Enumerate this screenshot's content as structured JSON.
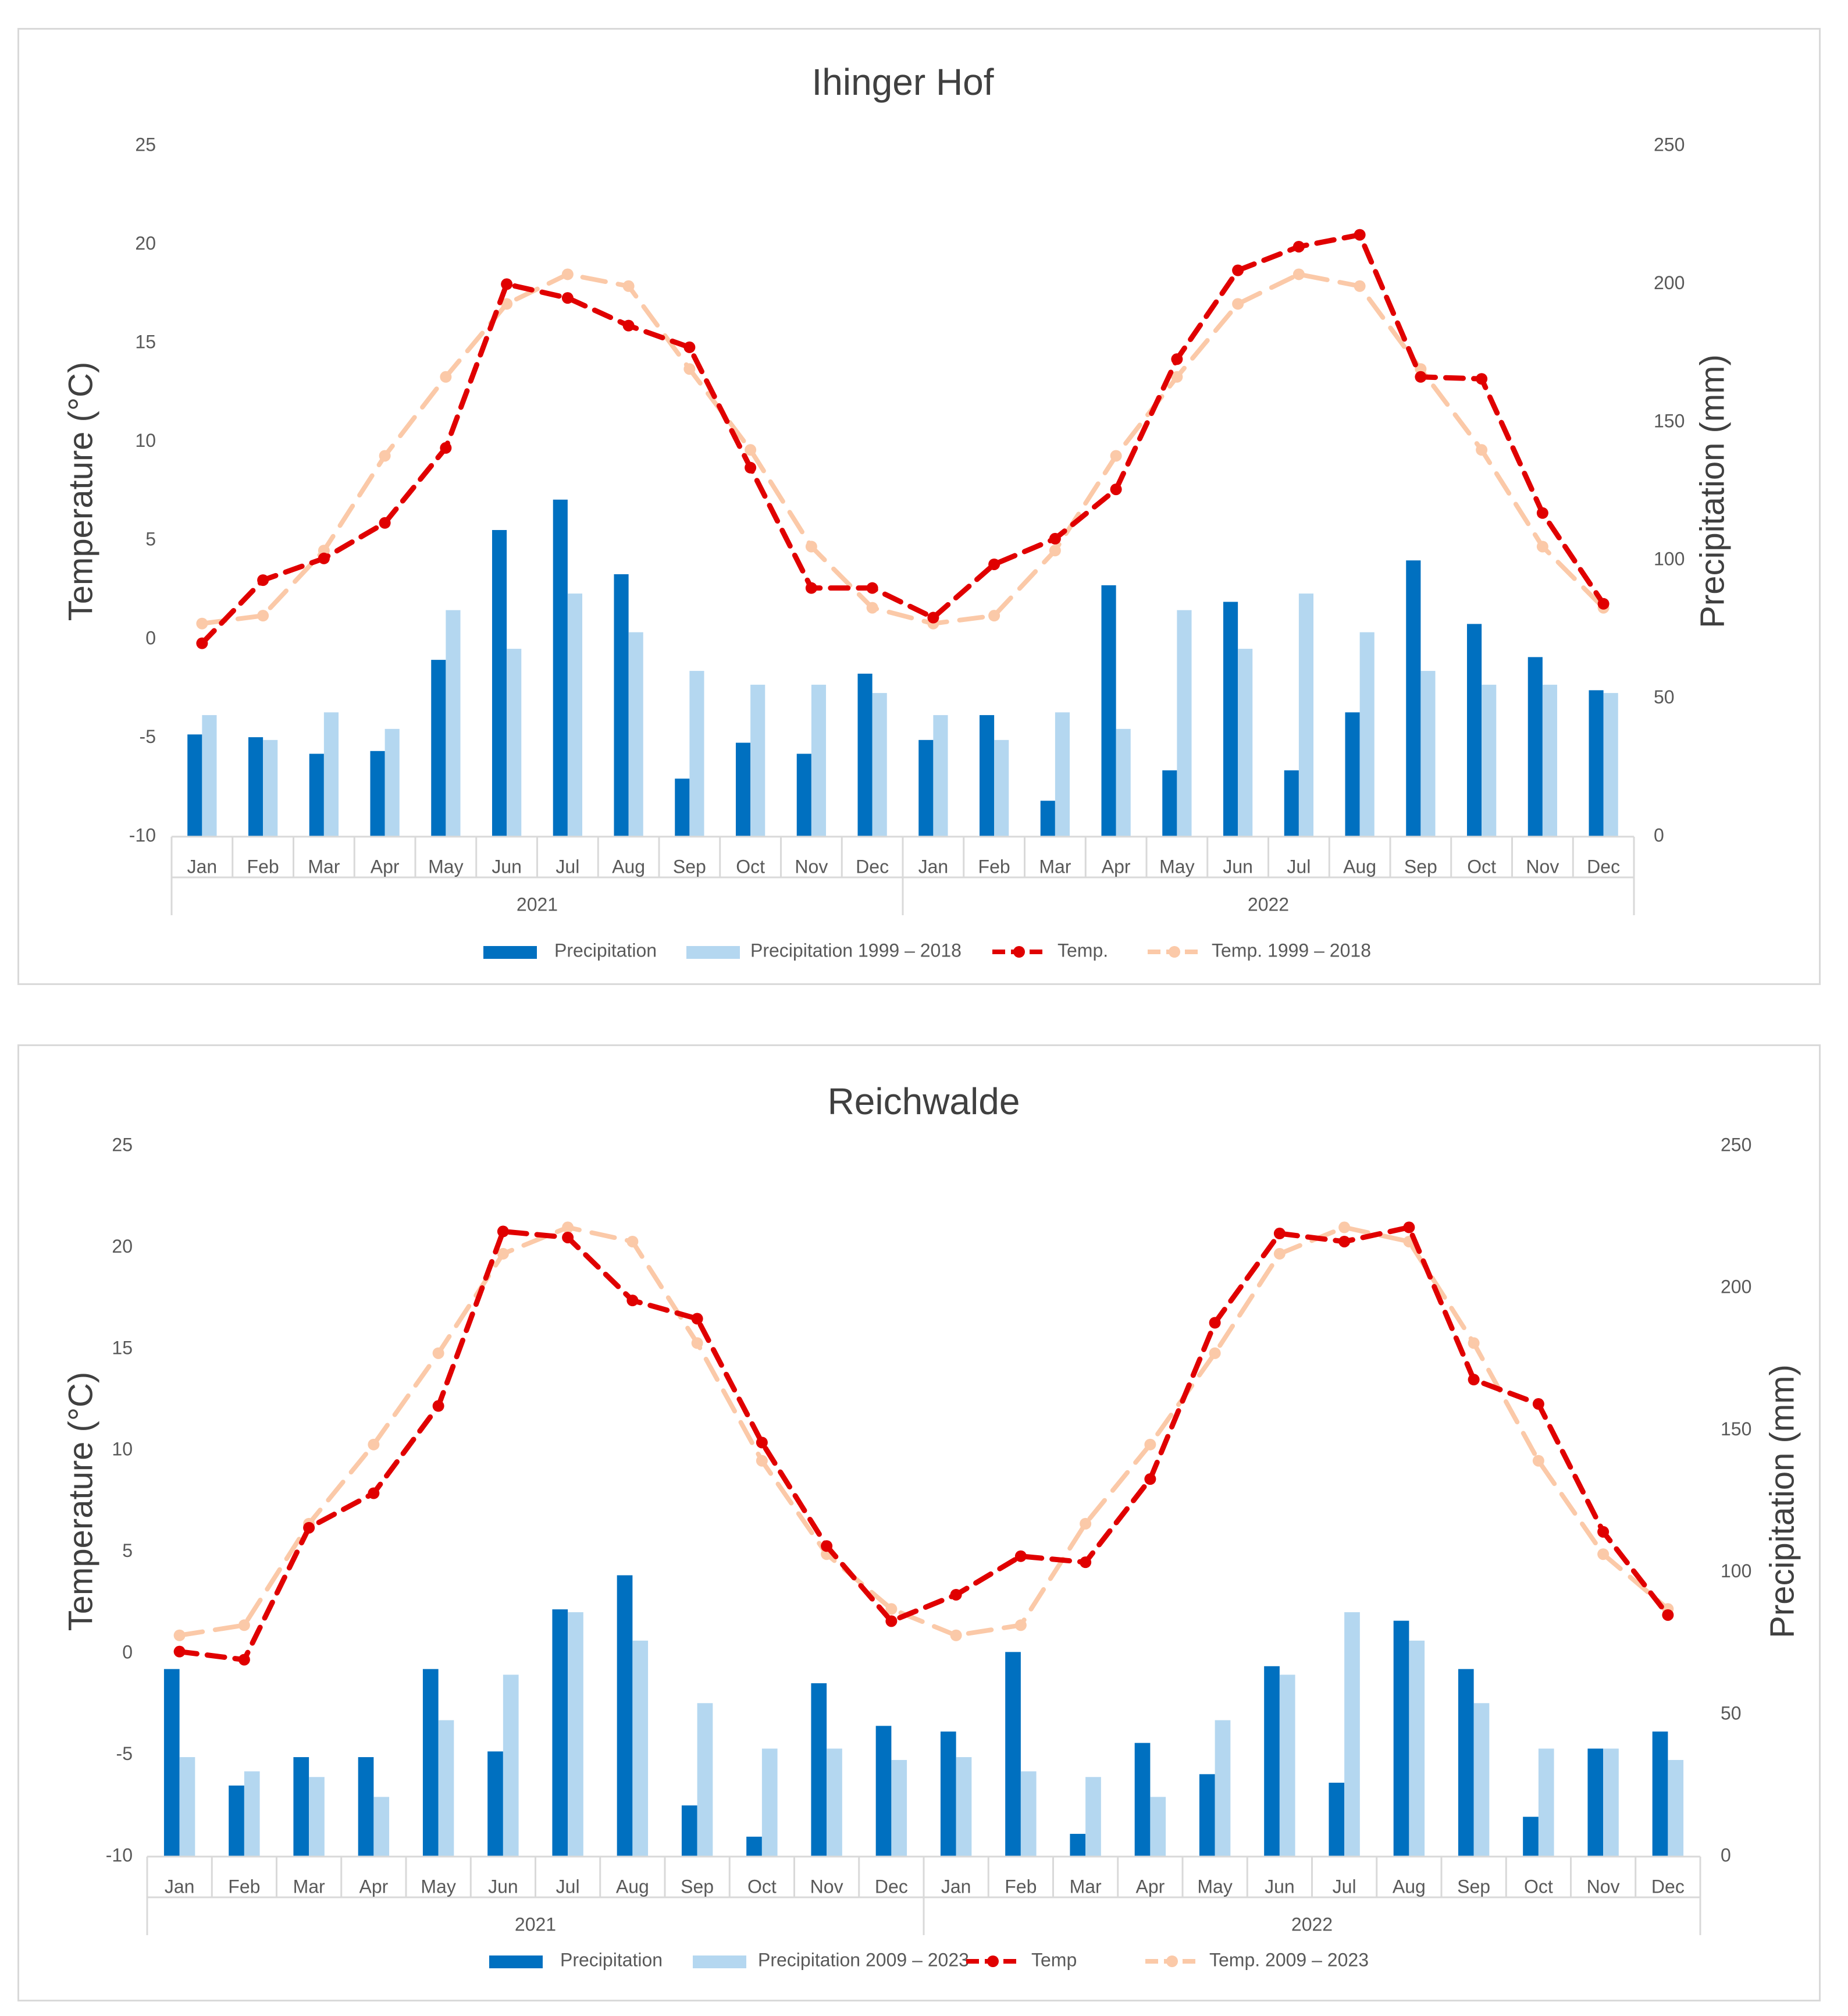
{
  "chart_data": [
    {
      "type": "bar+line",
      "title": "Ihinger Hof",
      "y_left_label": "Temperature (°C)",
      "y_right_label": "Precipitation (mm)",
      "y_left_ticks": [
        "25",
        "20",
        "15",
        "10",
        "5",
        "0",
        "-5",
        "-10"
      ],
      "y_right_ticks": [
        "250",
        "200",
        "150",
        "100",
        "50",
        "0"
      ],
      "ylim_left": [
        -10,
        25
      ],
      "ylim_right": [
        0,
        250
      ],
      "months": [
        "Jan",
        "Feb",
        "Mar",
        "Apr",
        "May",
        "Jun",
        "Jul",
        "Aug",
        "Sep",
        "Oct",
        "Nov",
        "Dec",
        "Jan",
        "Feb",
        "Mar",
        "Apr",
        "May",
        "Jun",
        "Jul",
        "Aug",
        "Sep",
        "Oct",
        "Nov",
        "Dec"
      ],
      "years": [
        "2021",
        "2022"
      ],
      "series": [
        {
          "name": "Precipitation",
          "kind": "bar",
          "axis": "right",
          "color": "#0070c0",
          "values": [
            37,
            36,
            30,
            31,
            64,
            111,
            122,
            95,
            21,
            34,
            30,
            59,
            35,
            44,
            13,
            91,
            24,
            85,
            24,
            45,
            100,
            77,
            65,
            53
          ]
        },
        {
          "name": "Precipitation 1999 – 2018",
          "kind": "bar",
          "axis": "right",
          "color": "#b4d7f0",
          "values": [
            44,
            35,
            45,
            39,
            82,
            68,
            88,
            74,
            60,
            55,
            55,
            52,
            44,
            35,
            45,
            39,
            82,
            68,
            88,
            74,
            60,
            55,
            55,
            52
          ]
        },
        {
          "name": "Temp.",
          "kind": "line",
          "axis": "left",
          "color": "#e00000",
          "values": [
            -0.2,
            3.0,
            4.1,
            5.9,
            9.7,
            18.0,
            17.3,
            15.9,
            14.8,
            8.7,
            2.6,
            2.6,
            1.1,
            3.8,
            5.1,
            7.6,
            14.2,
            18.7,
            19.9,
            20.5,
            13.3,
            13.2,
            6.4,
            1.8
          ]
        },
        {
          "name": "Temp. 1999 – 2018",
          "kind": "line",
          "axis": "left",
          "color": "#fbc9a8",
          "values": [
            0.8,
            1.2,
            4.5,
            9.3,
            13.3,
            17.0,
            18.5,
            17.9,
            13.7,
            9.6,
            4.7,
            1.6,
            0.8,
            1.2,
            4.5,
            9.3,
            13.3,
            17.0,
            18.5,
            17.9,
            13.7,
            9.6,
            4.7,
            1.6
          ]
        }
      ]
    },
    {
      "type": "bar+line",
      "title": "Reichwalde",
      "y_left_label": "Temperature (°C)",
      "y_right_label": "Precipitation (mm)",
      "y_left_ticks": [
        "25",
        "20",
        "15",
        "10",
        "5",
        "0",
        "-5",
        "-10"
      ],
      "y_right_ticks": [
        "250",
        "200",
        "150",
        "100",
        "50",
        "0"
      ],
      "ylim_left": [
        -10,
        25
      ],
      "ylim_right": [
        0,
        250
      ],
      "months": [
        "Jan",
        "Feb",
        "Mar",
        "Apr",
        "May",
        "Jun",
        "Jul",
        "Aug",
        "Sep",
        "Oct",
        "Nov",
        "Dec",
        "Jan",
        "Feb",
        "Mar",
        "Apr",
        "May",
        "Jun",
        "Jul",
        "Aug",
        "Sep",
        "Oct",
        "Nov",
        "Dec"
      ],
      "years": [
        "2021",
        "2022"
      ],
      "series": [
        {
          "name": "Precipitation",
          "kind": "bar",
          "axis": "right",
          "color": "#0070c0",
          "values": [
            66,
            25,
            35,
            35,
            66,
            37,
            87,
            99,
            18,
            7,
            61,
            46,
            44,
            72,
            8,
            40,
            29,
            67,
            26,
            83,
            66,
            14,
            38,
            44
          ]
        },
        {
          "name": "Precipitation 2009 – 2023",
          "kind": "bar",
          "axis": "right",
          "color": "#b4d7f0",
          "values": [
            35,
            30,
            28,
            21,
            48,
            64,
            86,
            76,
            54,
            38,
            38,
            34,
            35,
            30,
            28,
            21,
            48,
            64,
            86,
            76,
            54,
            38,
            38,
            34
          ]
        },
        {
          "name": "Temp",
          "kind": "line",
          "axis": "left",
          "color": "#e00000",
          "values": [
            0.1,
            -0.3,
            6.2,
            7.9,
            12.2,
            20.8,
            20.5,
            17.4,
            16.5,
            10.4,
            5.3,
            1.6,
            2.9,
            4.8,
            4.5,
            8.6,
            16.3,
            20.7,
            20.3,
            21.0,
            13.5,
            12.3,
            6.0,
            1.9
          ]
        },
        {
          "name": "Temp. 2009 – 2023",
          "kind": "line",
          "axis": "left",
          "color": "#fbc9a8",
          "values": [
            0.9,
            1.4,
            6.4,
            10.3,
            14.8,
            19.7,
            21.0,
            20.3,
            15.3,
            9.5,
            4.9,
            2.2,
            0.9,
            1.4,
            6.4,
            10.3,
            14.8,
            19.7,
            21.0,
            20.3,
            15.3,
            9.5,
            4.9,
            2.2
          ]
        }
      ]
    }
  ]
}
